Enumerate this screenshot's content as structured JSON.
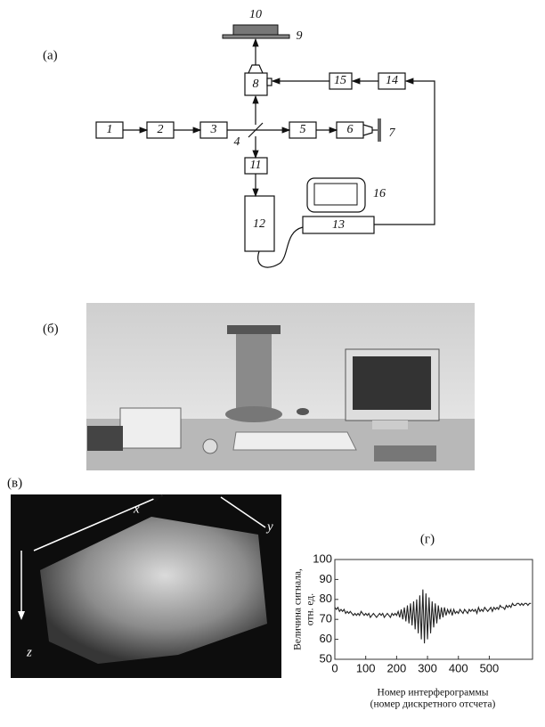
{
  "panels": {
    "a": "(а)",
    "b": "(б)",
    "v": "(в)"
  },
  "diagram": {
    "nodes": [
      "1",
      "2",
      "3",
      "4",
      "5",
      "6",
      "7",
      "8",
      "9",
      "10",
      "11",
      "12",
      "13",
      "14",
      "15",
      "16"
    ]
  },
  "volume": {
    "axes": [
      "x",
      "y",
      "z"
    ]
  },
  "chart_data": {
    "type": "line",
    "title": "(г)",
    "ylabel": [
      "Величина сигнала,",
      "отн. ед."
    ],
    "xlabel": [
      "Номер интерферограммы",
      "(номер дискретного отсчета)"
    ],
    "xlim": [
      0,
      640
    ],
    "xticks": [
      0,
      100,
      200,
      300,
      400,
      500
    ],
    "ylim": [
      50,
      100
    ],
    "yticks": [
      50,
      60,
      70,
      80,
      90,
      100
    ],
    "color": "#222222",
    "x": [
      0,
      5,
      10,
      15,
      20,
      25,
      30,
      35,
      40,
      45,
      50,
      55,
      60,
      65,
      70,
      75,
      80,
      85,
      90,
      95,
      100,
      105,
      110,
      115,
      120,
      125,
      130,
      135,
      140,
      145,
      150,
      155,
      160,
      165,
      170,
      175,
      180,
      185,
      190,
      195,
      200,
      205,
      210,
      215,
      220,
      225,
      230,
      235,
      240,
      245,
      250,
      255,
      260,
      265,
      270,
      275,
      280,
      285,
      290,
      295,
      300,
      305,
      310,
      315,
      320,
      325,
      330,
      335,
      340,
      345,
      350,
      355,
      360,
      365,
      370,
      375,
      380,
      385,
      390,
      395,
      400,
      405,
      410,
      415,
      420,
      425,
      430,
      435,
      440,
      445,
      450,
      455,
      460,
      465,
      470,
      475,
      480,
      485,
      490,
      495,
      500,
      505,
      510,
      515,
      520,
      525,
      530,
      535,
      540,
      545,
      550,
      555,
      560,
      565,
      570,
      575,
      580,
      585,
      590,
      595,
      600,
      605,
      610,
      615,
      620,
      625,
      630,
      635
    ],
    "values": [
      76,
      75,
      76,
      74,
      75,
      74,
      75,
      73,
      74,
      73,
      74,
      73,
      72,
      73,
      72,
      73,
      72,
      74,
      73,
      72,
      73,
      72,
      73,
      71,
      72,
      73,
      72,
      71,
      72,
      73,
      72,
      73,
      71,
      72,
      73,
      72,
      71,
      73,
      72,
      73,
      72,
      74,
      71,
      75,
      70,
      76,
      69,
      77,
      68,
      78,
      67,
      79,
      65,
      80,
      63,
      82,
      60,
      85,
      58,
      83,
      60,
      81,
      63,
      79,
      66,
      78,
      68,
      77,
      70,
      76,
      71,
      76,
      72,
      75,
      73,
      75,
      72,
      75,
      73,
      74,
      73,
      75,
      74,
      73,
      75,
      74,
      73,
      75,
      74,
      75,
      74,
      75,
      73,
      76,
      74,
      75,
      74,
      76,
      75,
      74,
      75,
      76,
      74,
      76,
      75,
      76,
      75,
      77,
      76,
      76,
      75,
      77,
      76,
      77,
      76,
      78,
      77,
      77,
      78,
      78,
      77,
      78,
      77,
      78,
      78,
      77,
      78,
      78
    ]
  }
}
